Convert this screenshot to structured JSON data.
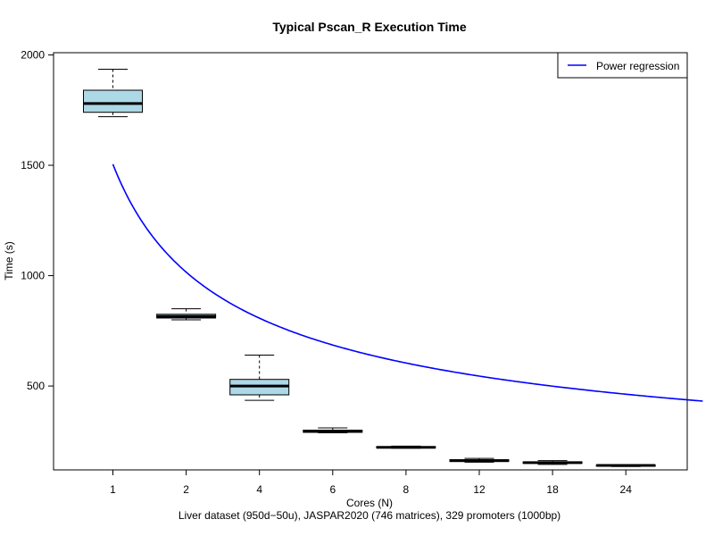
{
  "chart_data": {
    "type": "box",
    "title": "Typical Pscan_R Execution Time",
    "xlabel": "Cores (N)",
    "ylabel": "Time (s)",
    "subtitle": "Liver dataset (950d−50u), JASPAR2020 (746 matrices), 329 promoters (1000bp)",
    "categories": [
      "1",
      "2",
      "4",
      "6",
      "8",
      "12",
      "18",
      "24"
    ],
    "yticks": [
      500,
      1000,
      1500,
      2000
    ],
    "ylim": [
      120,
      2010
    ],
    "boxes": [
      {
        "category": "1",
        "min": 1720,
        "q1": 1740,
        "median": 1780,
        "q3": 1840,
        "max": 1935
      },
      {
        "category": "2",
        "min": 800,
        "q1": 808,
        "median": 815,
        "q3": 825,
        "max": 850
      },
      {
        "category": "4",
        "min": 435,
        "q1": 460,
        "median": 500,
        "q3": 530,
        "max": 640
      },
      {
        "category": "6",
        "min": 288,
        "q1": 290,
        "median": 295,
        "q3": 300,
        "max": 310
      },
      {
        "category": "8",
        "min": 218,
        "q1": 220,
        "median": 222,
        "q3": 225,
        "max": 228
      },
      {
        "category": "12",
        "min": 155,
        "q1": 158,
        "median": 162,
        "q3": 166,
        "max": 172
      },
      {
        "category": "18",
        "min": 145,
        "q1": 150,
        "median": 153,
        "q3": 156,
        "max": 162
      },
      {
        "category": "24",
        "min": 135,
        "q1": 137,
        "median": 140,
        "q3": 142,
        "max": 144
      }
    ],
    "regression": {
      "name": "Power regression",
      "model": "y = a * x^b",
      "a": 1505,
      "b": -0.567,
      "x_from": 1,
      "x_to": 9.05,
      "color": "#0000ff"
    },
    "box_fill": "#add8e6",
    "legend_position": "top-right",
    "grid": false
  }
}
